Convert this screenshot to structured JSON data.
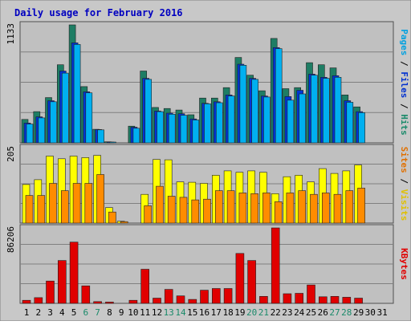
{
  "chart_data": {
    "type": "bar",
    "title": "Daily usage for February 2016",
    "categories": [
      "1",
      "2",
      "3",
      "4",
      "5",
      "6",
      "7",
      "8",
      "9",
      "10",
      "11",
      "12",
      "13",
      "14",
      "15",
      "16",
      "17",
      "18",
      "19",
      "20",
      "21",
      "22",
      "23",
      "24",
      "25",
      "26",
      "27",
      "28",
      "29",
      "30",
      "31"
    ],
    "weekend_days": [
      "6",
      "7",
      "13",
      "14",
      "20",
      "21",
      "27",
      "28"
    ],
    "panels": [
      {
        "id": "top",
        "max_label": "1133",
        "ylim": [
          0,
          1133
        ],
        "right_label_parts": [
          {
            "text": "Pages",
            "color": "#00a0e0"
          },
          {
            "text": " / ",
            "color": "#000000"
          },
          {
            "text": "Files",
            "color": "#0030d0"
          },
          {
            "text": " / ",
            "color": "#000000"
          },
          {
            "text": "Hits",
            "color": "#1a8a6a"
          }
        ],
        "series": [
          {
            "name": "Hits",
            "color": "#1e7d64",
            "values": [
              225,
              300,
              435,
              750,
              1133,
              540,
              130,
              10,
              0,
              160,
              690,
              340,
              330,
              315,
              270,
              430,
              430,
              530,
              820,
              650,
              500,
              1003,
              520,
              530,
              770,
              750,
              720,
              460,
              345,
              0,
              0
            ]
          },
          {
            "name": "Files",
            "color": "#0035d5",
            "values": [
              190,
              250,
              405,
              690,
              960,
              490,
              128,
              8,
              0,
              150,
              620,
              305,
              285,
              280,
              230,
              380,
              395,
              460,
              755,
              620,
              450,
              915,
              445,
              505,
              660,
              630,
              645,
              405,
              300,
              0,
              0
            ]
          },
          {
            "name": "Pages",
            "color": "#00b0f0",
            "values": [
              180,
              240,
              395,
              670,
              945,
              480,
              125,
              5,
              0,
              140,
              610,
              300,
              275,
              265,
              220,
              375,
              385,
              450,
              745,
              610,
              440,
              905,
              410,
              470,
              650,
              620,
              630,
              390,
              290,
              0,
              0
            ]
          }
        ]
      },
      {
        "id": "mid",
        "max_label": "205",
        "ylim": [
          0,
          205
        ],
        "right_label_parts": [
          {
            "text": "Sites",
            "color": "#e07000"
          },
          {
            "text": " / ",
            "color": "#000000"
          },
          {
            "text": "Visits",
            "color": "#e0c000"
          }
        ],
        "series": [
          {
            "name": "Visits",
            "color": "#ffff00",
            "values": [
              105,
              118,
              182,
              175,
              182,
              178,
              184,
              42,
              5,
              0,
              78,
              173,
              172,
              112,
              111,
              108,
              130,
              142,
              138,
              142,
              138,
              80,
              126,
              130,
              112,
              148,
              135,
              142,
              158,
              0,
              0
            ]
          },
          {
            "name": "Sites",
            "color": "#ff8c00",
            "values": [
              75,
              75,
              108,
              88,
              108,
              108,
              132,
              30,
              4,
              0,
              47,
              100,
              73,
              70,
              63,
              65,
              88,
              88,
              82,
              80,
              82,
              58,
              82,
              88,
              78,
              82,
              78,
              88,
              95,
              0,
              0
            ]
          }
        ]
      },
      {
        "id": "bot",
        "max_label": "86206",
        "ylim": [
          0,
          86206
        ],
        "right_label_parts": [
          {
            "text": "KBytes",
            "color": "#e00000"
          }
        ],
        "series": [
          {
            "name": "KBytes",
            "color": "#e00000",
            "values": [
              3500,
              6500,
              25500,
              49000,
              70000,
              20000,
              2000,
              1500,
              0,
              3500,
              39000,
              6000,
              16000,
              8500,
              4500,
              15000,
              17000,
              17000,
              57000,
              49000,
              8000,
              86206,
              11000,
              11500,
              21000,
              7500,
              8000,
              7000,
              6000,
              0,
              0
            ]
          }
        ]
      }
    ]
  }
}
